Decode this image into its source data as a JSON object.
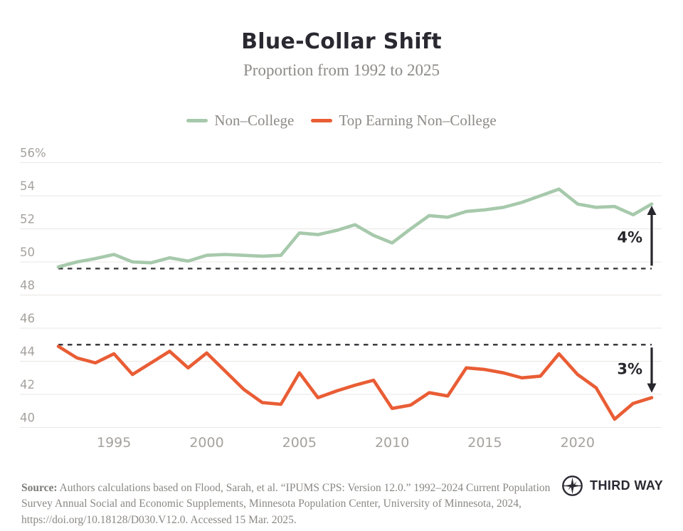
{
  "title": "Blue-Collar Shift",
  "subtitle": "Proportion from 1992 to 2025",
  "legend": [
    {
      "label": "Non–College",
      "color": "#a6c9ab"
    },
    {
      "label": "Top Earning Non–College",
      "color": "#e95d35"
    }
  ],
  "chart_data": {
    "type": "line",
    "title": "Blue-Collar Shift",
    "subtitle": "Proportion from 1992 to 2025",
    "xlim": [
      1992,
      2024
    ],
    "ylim": [
      40,
      56
    ],
    "grid": true,
    "legend_position": "top",
    "x": [
      1992,
      1993,
      1994,
      1995,
      1996,
      1997,
      1998,
      1999,
      2000,
      2001,
      2002,
      2003,
      2004,
      2005,
      2006,
      2007,
      2008,
      2009,
      2010,
      2011,
      2012,
      2013,
      2014,
      2015,
      2016,
      2017,
      2018,
      2019,
      2020,
      2021,
      2022,
      2023,
      2024
    ],
    "series": [
      {
        "name": "Non–College",
        "color": "#a6c9ab",
        "values": [
          49.7,
          50.0,
          50.2,
          50.45,
          50.0,
          49.95,
          50.25,
          50.05,
          50.4,
          50.45,
          50.4,
          50.35,
          50.4,
          51.75,
          51.65,
          51.9,
          52.25,
          51.6,
          51.15,
          52.0,
          52.8,
          52.7,
          53.05,
          53.15,
          53.3,
          53.6,
          54.0,
          54.4,
          53.5,
          53.3,
          53.35,
          52.85,
          53.5
        ]
      },
      {
        "name": "Top Earning Non–College",
        "color": "#e95d35",
        "values": [
          44.9,
          44.2,
          43.9,
          44.45,
          43.2,
          43.9,
          44.6,
          43.6,
          44.5,
          43.4,
          42.3,
          41.5,
          41.4,
          43.3,
          41.8,
          42.2,
          42.55,
          42.85,
          41.15,
          41.35,
          42.1,
          41.9,
          43.6,
          43.5,
          43.3,
          43.0,
          43.1,
          44.45,
          43.2,
          42.4,
          40.5,
          41.45,
          41.8
        ]
      }
    ],
    "yticks": [
      {
        "label": "56%",
        "value": 56
      },
      {
        "label": "54",
        "value": 54
      },
      {
        "label": "52",
        "value": 52
      },
      {
        "label": "50",
        "value": 50
      },
      {
        "label": "48",
        "value": 48
      },
      {
        "label": "46",
        "value": 46
      },
      {
        "label": "44",
        "value": 44
      },
      {
        "label": "42",
        "value": 42
      },
      {
        "label": "40",
        "value": 40
      }
    ],
    "xticks": [
      {
        "label": "1995",
        "year": 1995
      },
      {
        "label": "2000",
        "year": 2000
      },
      {
        "label": "2005",
        "year": 2005
      },
      {
        "label": "2010",
        "year": 2010
      },
      {
        "label": "2015",
        "year": 2015
      },
      {
        "label": "2020",
        "year": 2020
      }
    ],
    "annotations": [
      {
        "label": "4%",
        "baseline_value": 49.6,
        "arrow_tip_value": 53.4,
        "direction": "up"
      },
      {
        "label": "3%",
        "baseline_value": 45.0,
        "arrow_tip_value": 42.1,
        "direction": "down"
      }
    ],
    "colors": {
      "grid": "#e9e7e4",
      "tick_label": "#a5a29d",
      "dashed_baseline": "#3c3b40",
      "arrow": "#27262c",
      "annotation_label": "#27262c"
    }
  },
  "source": {
    "prefix": "Source:",
    "text": "Authors calculations based on Flood, Sarah, et al. “IPUMS CPS: Version 12.0.” 1992–2024 Current Population Survey Annual Social and Economic Supplements, Minnesota Population Center, University of Minnesota, 2024, https://doi.org/10.18128/D030.V12.0. Accessed 15 Mar. 2025."
  },
  "logo": {
    "text": "THIRD WAY"
  }
}
